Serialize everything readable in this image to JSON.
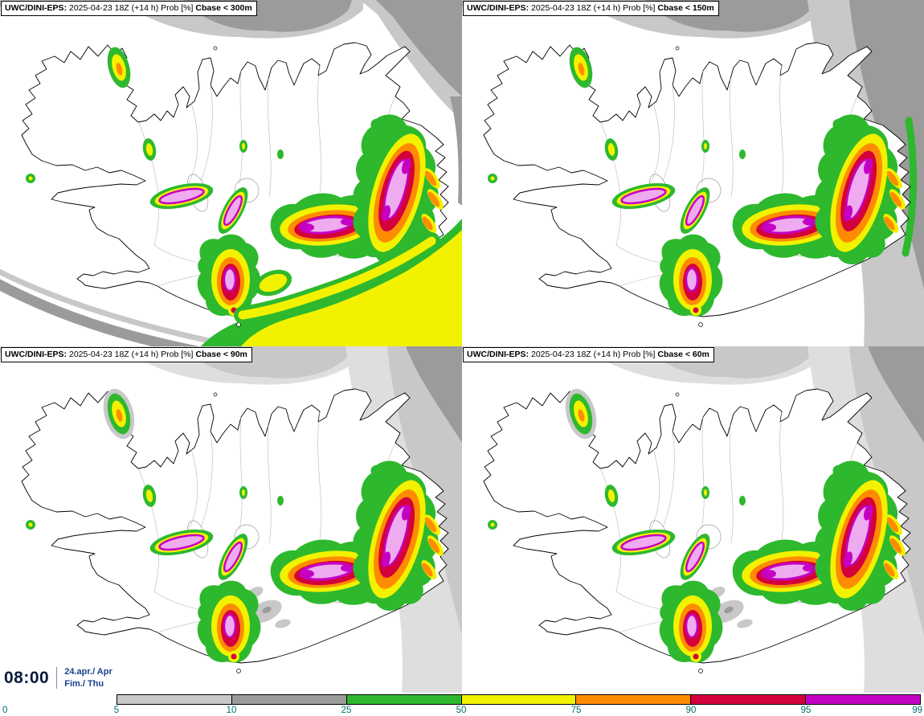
{
  "panels": [
    {
      "model": "UWC/DINI-EPS:",
      "run": "2025-04-23 18Z (+14 h) Prob [%]",
      "param": "Cbase < 300m"
    },
    {
      "model": "UWC/DINI-EPS:",
      "run": "2025-04-23 18Z (+14 h) Prob [%]",
      "param": "Cbase < 150m"
    },
    {
      "model": "UWC/DINI-EPS:",
      "run": "2025-04-23 18Z (+14 h) Prob [%]",
      "param": "Cbase < 90m"
    },
    {
      "model": "UWC/DINI-EPS:",
      "run": "2025-04-23 18Z (+14 h) Prob [%]",
      "param": "Cbase < 60m"
    }
  ],
  "timestamp": {
    "time": "08:00",
    "date": "24.apr./ Apr",
    "day": "Fim./ Thu"
  },
  "colorbar": {
    "ticks": [
      "0",
      "5",
      "10",
      "25",
      "50",
      "75",
      "90",
      "95",
      "99"
    ],
    "segments": [
      {
        "range": "5-10",
        "color": "#c8c8c8"
      },
      {
        "range": "10-25",
        "color": "#9b9b9b"
      },
      {
        "range": "25-50",
        "color": "#2eb82e"
      },
      {
        "range": "50-75",
        "color": "#f2f200"
      },
      {
        "range": "75-90",
        "color": "#ff8c00"
      },
      {
        "range": "90-95",
        "color": "#d4003c"
      },
      {
        "range": "95-99",
        "color": "#c400c4"
      }
    ]
  },
  "palette": {
    "gray_pale": "#dedede",
    "gray_light": "#c8c8c8",
    "gray_mid": "#9b9b9b",
    "green": "#2eb82e",
    "yellow": "#f2f200",
    "orange": "#ff8c00",
    "red": "#d4003c",
    "magenta": "#c400c4",
    "pink": "#efabef",
    "tick": "#00716e",
    "time": "#0a1a3c",
    "date": "#1c3f8f"
  }
}
